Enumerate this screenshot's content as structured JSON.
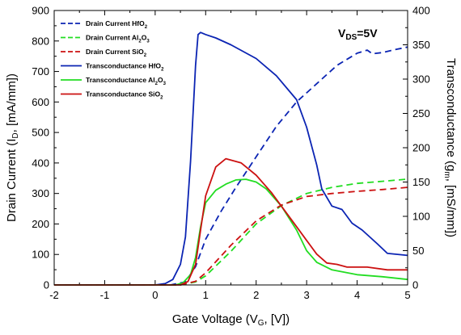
{
  "chart_data": {
    "type": "line",
    "xlabel": "Gate Voltage (VG, [V])",
    "xlabel_parts": {
      "pre": "Gate Voltage (V",
      "sub": "G",
      "post": ", [V])"
    },
    "ylabel_left_parts": {
      "pre": "Drain Current (I",
      "sub": "D",
      "post": ", [mA/mm])"
    },
    "ylabel_right_parts": {
      "pre": "Transconductance (g",
      "sub": "m",
      "post": ", [mS/mm])"
    },
    "annotation": {
      "pre": "V",
      "sub": "DS",
      "post": "=5V"
    },
    "xlim": [
      -2,
      5
    ],
    "ylim_left": [
      0,
      900
    ],
    "ylim_right": [
      0,
      400
    ],
    "x_ticks": [
      "-2",
      "-1",
      "0",
      "1",
      "2",
      "3",
      "4",
      "5"
    ],
    "y_left_ticks": [
      "0",
      "100",
      "200",
      "300",
      "400",
      "500",
      "600",
      "700",
      "800",
      "900"
    ],
    "y_right_ticks": [
      "0",
      "50",
      "100",
      "150",
      "200",
      "250",
      "300",
      "350",
      "400"
    ],
    "legend_position": "top-left",
    "grid": false,
    "series": [
      {
        "name": "Drain Current HfO2",
        "legend": {
          "pre": "Drain Current HfO",
          "sub": "2",
          "post": ""
        },
        "axis": "left",
        "color": "#0b24b3",
        "dash": "dashed",
        "x": [
          -2,
          0.3,
          0.6,
          0.8,
          1.0,
          1.3,
          1.6,
          2.0,
          2.4,
          2.8,
          3.2,
          3.6,
          4.0,
          4.2,
          4.3,
          4.5,
          4.7,
          5.0
        ],
        "y": [
          0,
          0,
          10,
          60,
          150,
          240,
          320,
          420,
          520,
          600,
          660,
          720,
          760,
          770,
          758,
          762,
          770,
          780
        ]
      },
      {
        "name": "Drain Current Al2O3",
        "legend": {
          "pre": "Drain Current Al",
          "sub": "2",
          "post": "O",
          "sub2": "3"
        },
        "axis": "left",
        "color": "#22dd22",
        "dash": "dashed",
        "x": [
          -2,
          0.5,
          0.8,
          1.0,
          1.5,
          2.0,
          2.5,
          3.0,
          3.5,
          4.0,
          4.5,
          5.0
        ],
        "y": [
          0,
          0,
          10,
          30,
          110,
          200,
          260,
          300,
          320,
          333,
          340,
          347
        ]
      },
      {
        "name": "Drain Current SiO2",
        "legend": {
          "pre": "Drain Current SiO",
          "sub": "2",
          "post": ""
        },
        "axis": "left",
        "color": "#cc1111",
        "dash": "dashed",
        "x": [
          -2,
          0.5,
          0.8,
          1.0,
          1.5,
          2.0,
          2.5,
          3.0,
          3.5,
          4.0,
          4.5,
          5.0
        ],
        "y": [
          0,
          0,
          12,
          40,
          130,
          210,
          262,
          290,
          300,
          307,
          313,
          320
        ]
      },
      {
        "name": "Transconductance HfO2",
        "legend": {
          "pre": "Transconductance HfO",
          "sub": "2",
          "post": ""
        },
        "axis": "right",
        "color": "#0b24b3",
        "dash": "solid",
        "x": [
          -2,
          0.0,
          0.2,
          0.35,
          0.5,
          0.6,
          0.7,
          0.8,
          0.85,
          0.9,
          1.0,
          1.2,
          1.5,
          2.0,
          2.4,
          2.8,
          3.0,
          3.2,
          3.3,
          3.5,
          3.7,
          3.9,
          4.1,
          4.4,
          4.6,
          5.0
        ],
        "y": [
          0,
          0,
          2,
          8,
          30,
          70,
          180,
          320,
          365,
          368,
          365,
          360,
          350,
          330,
          305,
          270,
          230,
          175,
          140,
          115,
          110,
          90,
          80,
          60,
          46,
          43
        ]
      },
      {
        "name": "Transconductance Al2O3",
        "legend": {
          "pre": "Transconductance Al",
          "sub": "2",
          "post": "O",
          "sub2": "3"
        },
        "axis": "right",
        "color": "#22dd22",
        "dash": "solid",
        "x": [
          -2,
          0.4,
          0.55,
          0.7,
          0.8,
          0.9,
          1.0,
          1.2,
          1.4,
          1.6,
          1.8,
          2.0,
          2.2,
          2.5,
          2.8,
          3.0,
          3.2,
          3.5,
          4.0,
          4.5,
          5.0
        ],
        "y": [
          0,
          0,
          3,
          15,
          40,
          85,
          120,
          138,
          147,
          153,
          154,
          150,
          140,
          115,
          80,
          50,
          33,
          22,
          15,
          12,
          8
        ]
      },
      {
        "name": "Transconductance SiO2",
        "legend": {
          "pre": "Transconductance SiO",
          "sub": "2",
          "post": ""
        },
        "axis": "right",
        "color": "#cc1111",
        "dash": "solid",
        "x": [
          -2,
          0.5,
          0.65,
          0.8,
          0.9,
          1.0,
          1.2,
          1.4,
          1.7,
          2.0,
          2.3,
          2.5,
          2.8,
          3.0,
          3.2,
          3.4,
          3.6,
          3.8,
          4.2,
          4.6,
          5.0
        ],
        "y": [
          0,
          0,
          5,
          30,
          80,
          130,
          172,
          184,
          178,
          160,
          135,
          115,
          85,
          65,
          45,
          32,
          30,
          26,
          26,
          22,
          22
        ]
      }
    ]
  }
}
